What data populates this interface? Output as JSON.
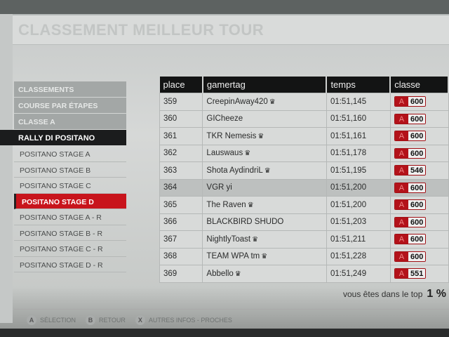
{
  "title": "CLASSEMENT MEILLEUR TOUR",
  "menu": {
    "headers": [
      "CLASSEMENTS",
      "COURSE PAR ÉTAPES",
      "CLASSE A",
      "RALLY DI POSITANO"
    ],
    "items": [
      "POSITANO STAGE A",
      "POSITANO STAGE B",
      "POSITANO STAGE C",
      "POSITANO STAGE D",
      "POSITANO STAGE A - R",
      "POSITANO STAGE B - R",
      "POSITANO STAGE C - R",
      "POSITANO STAGE D - R"
    ],
    "selected_index": 3
  },
  "table": {
    "columns": [
      "place",
      "gamertag",
      "temps",
      "classe"
    ],
    "rows": [
      {
        "place": "359",
        "gamertag": "CreepinAway420",
        "crown": true,
        "temps": "01:51,145",
        "classe": "A",
        "pi": "600"
      },
      {
        "place": "360",
        "gamertag": "GICheeze",
        "crown": false,
        "temps": "01:51,160",
        "classe": "A",
        "pi": "600"
      },
      {
        "place": "361",
        "gamertag": "TKR Nemesis",
        "crown": true,
        "temps": "01:51,161",
        "classe": "A",
        "pi": "600"
      },
      {
        "place": "362",
        "gamertag": "Lauswaus",
        "crown": true,
        "temps": "01:51,178",
        "classe": "A",
        "pi": "600"
      },
      {
        "place": "363",
        "gamertag": "Shota AydindriL",
        "crown": true,
        "temps": "01:51,195",
        "classe": "A",
        "pi": "546"
      },
      {
        "place": "364",
        "gamertag": "VGR yi",
        "crown": false,
        "temps": "01:51,200",
        "classe": "A",
        "pi": "600",
        "highlighted": true
      },
      {
        "place": "365",
        "gamertag": "The Raven",
        "crown": true,
        "temps": "01:51,200",
        "classe": "A",
        "pi": "600"
      },
      {
        "place": "366",
        "gamertag": "BLACKBIRD SHUDO",
        "crown": false,
        "temps": "01:51,203",
        "classe": "A",
        "pi": "600"
      },
      {
        "place": "367",
        "gamertag": "NightlyToast",
        "crown": true,
        "temps": "01:51,211",
        "classe": "A",
        "pi": "600"
      },
      {
        "place": "368",
        "gamertag": "TEAM WPA tm",
        "crown": true,
        "temps": "01:51,228",
        "classe": "A",
        "pi": "600"
      },
      {
        "place": "369",
        "gamertag": "Abbello",
        "crown": true,
        "temps": "01:51,249",
        "classe": "A",
        "pi": "551"
      }
    ]
  },
  "top_text": "vous êtes dans le top",
  "top_value": "1 %",
  "footer": [
    {
      "key": "A",
      "label": "SÉLECTION"
    },
    {
      "key": "B",
      "label": "RETOUR"
    },
    {
      "key": "X",
      "label": "AUTRES INFOS - PROCHES"
    }
  ],
  "colors": {
    "accent": "#c8141c",
    "header": "#131414"
  }
}
